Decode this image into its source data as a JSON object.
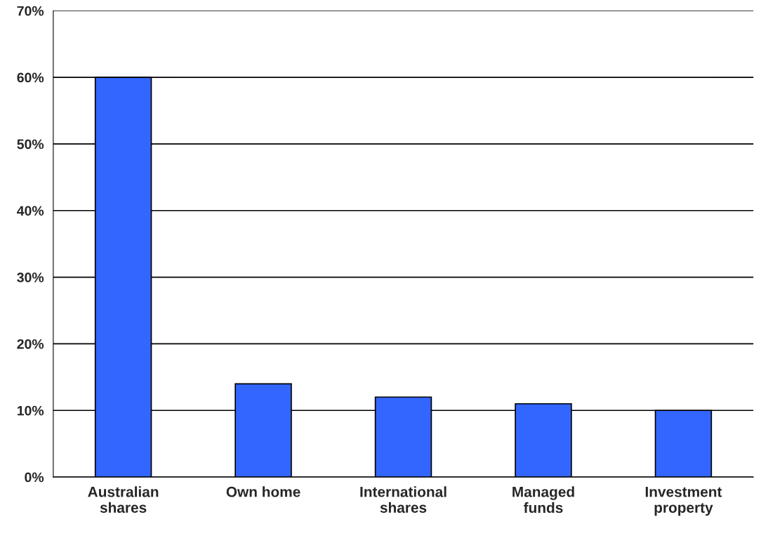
{
  "chart_data": {
    "type": "bar",
    "categories": [
      "Australian\nshares",
      "Own home",
      "International\nshares",
      "Managed\nfunds",
      "Investment\nproperty"
    ],
    "values": [
      60,
      14,
      12,
      11,
      10
    ],
    "color": "#3366ff",
    "ylim": [
      0,
      70
    ],
    "yticks": [
      {
        "value": 0,
        "label": "0%"
      },
      {
        "value": 10,
        "label": "10%"
      },
      {
        "value": 20,
        "label": "20%"
      },
      {
        "value": 30,
        "label": "30%"
      },
      {
        "value": 40,
        "label": "40%"
      },
      {
        "value": 50,
        "label": "50%"
      },
      {
        "value": 60,
        "label": "60%"
      },
      {
        "value": 70,
        "label": "70%"
      }
    ],
    "grid": "y"
  }
}
